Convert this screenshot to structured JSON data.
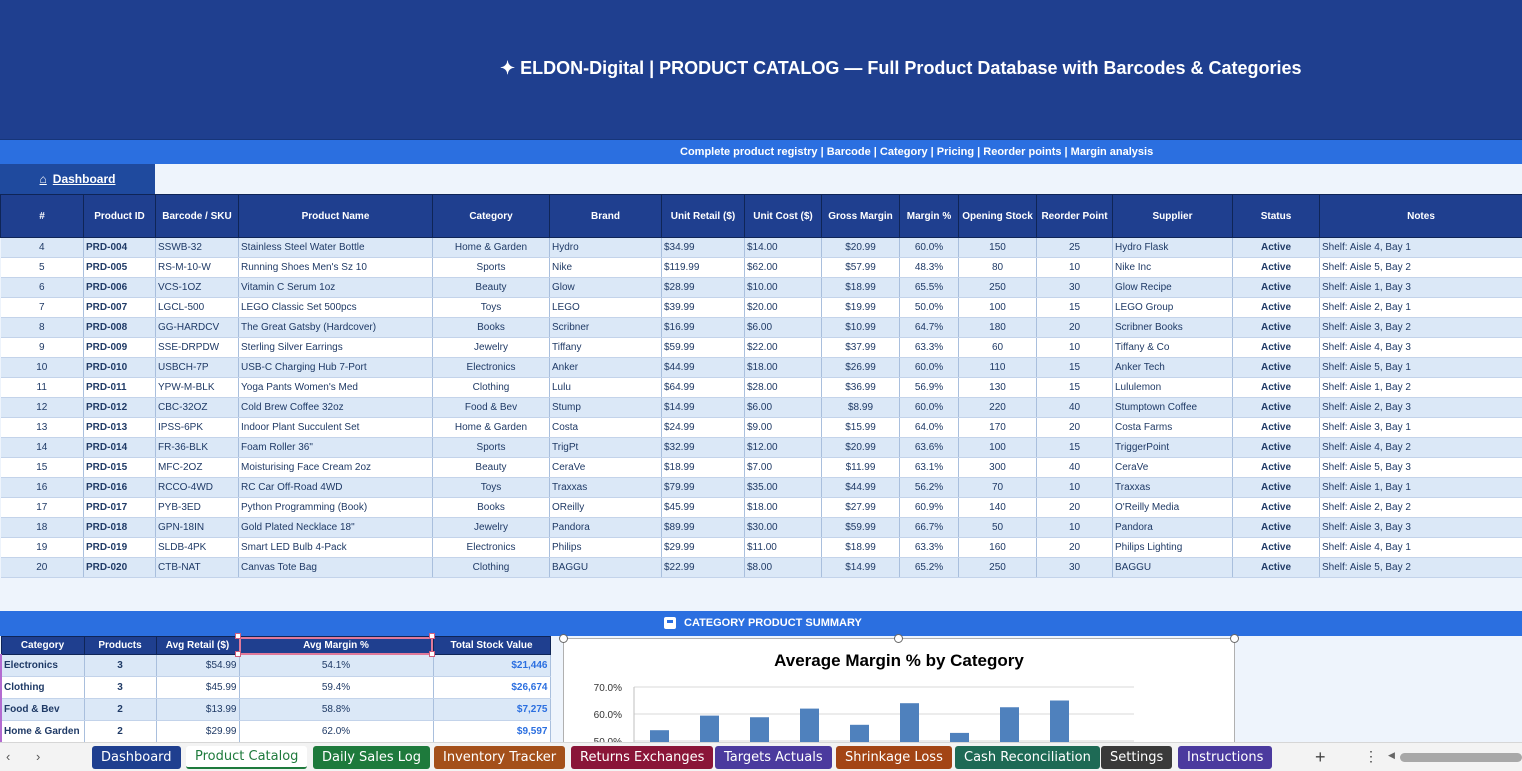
{
  "header": {
    "title": "✦  ELDON-Digital  |  PRODUCT CATALOG  —  Full Product Database with Barcodes & Categories",
    "subtitle": "Complete product registry  |  Barcode  |  Category  |  Pricing  |  Reorder points  |  Margin analysis",
    "bg_color": "#1f3f8f",
    "accent_color": "#2b6fe0"
  },
  "nav": {
    "dashboard_label": "Dashboard",
    "dashboard_icon": "home-icon"
  },
  "main_table": {
    "columns": [
      "#",
      "Product ID",
      "Barcode / SKU",
      "Product Name",
      "Category",
      "Brand",
      "Unit Retail ($)",
      "Unit Cost ($)",
      "Gross Margin",
      "Margin %",
      "Opening Stock",
      "Reorder Point",
      "Supplier",
      "Status",
      "Notes"
    ],
    "rows": [
      [
        "4",
        "PRD-004",
        "SSWB-32",
        "Stainless Steel Water Bottle",
        "Home & Garden",
        "Hydro",
        "$34.99",
        "$14.00",
        "$20.99",
        "60.0%",
        "150",
        "25",
        "Hydro Flask",
        "Active",
        "Shelf: Aisle 4, Bay 1"
      ],
      [
        "5",
        "PRD-005",
        "RS-M-10-W",
        "Running Shoes Men's Sz 10",
        "Sports",
        "Nike",
        "$119.99",
        "$62.00",
        "$57.99",
        "48.3%",
        "80",
        "10",
        "Nike Inc",
        "Active",
        "Shelf: Aisle 5, Bay 2"
      ],
      [
        "6",
        "PRD-006",
        "VCS-1OZ",
        "Vitamin C Serum 1oz",
        "Beauty",
        "Glow",
        "$28.99",
        "$10.00",
        "$18.99",
        "65.5%",
        "250",
        "30",
        "Glow Recipe",
        "Active",
        "Shelf: Aisle 1, Bay 3"
      ],
      [
        "7",
        "PRD-007",
        "LGCL-500",
        "LEGO Classic Set 500pcs",
        "Toys",
        "LEGO",
        "$39.99",
        "$20.00",
        "$19.99",
        "50.0%",
        "100",
        "15",
        "LEGO Group",
        "Active",
        "Shelf: Aisle 2, Bay 1"
      ],
      [
        "8",
        "PRD-008",
        "GG-HARDCV",
        "The Great Gatsby (Hardcover)",
        "Books",
        "Scribner",
        "$16.99",
        "$6.00",
        "$10.99",
        "64.7%",
        "180",
        "20",
        "Scribner Books",
        "Active",
        "Shelf: Aisle 3, Bay 2"
      ],
      [
        "9",
        "PRD-009",
        "SSE-DRPDW",
        "Sterling Silver Earrings",
        "Jewelry",
        "Tiffany",
        "$59.99",
        "$22.00",
        "$37.99",
        "63.3%",
        "60",
        "10",
        "Tiffany & Co",
        "Active",
        "Shelf: Aisle 4, Bay 3"
      ],
      [
        "10",
        "PRD-010",
        "USBCH-7P",
        "USB-C Charging Hub 7-Port",
        "Electronics",
        "Anker",
        "$44.99",
        "$18.00",
        "$26.99",
        "60.0%",
        "110",
        "15",
        "Anker Tech",
        "Active",
        "Shelf: Aisle 5, Bay 1"
      ],
      [
        "11",
        "PRD-011",
        "YPW-M-BLK",
        "Yoga Pants Women's Med",
        "Clothing",
        "Lulu",
        "$64.99",
        "$28.00",
        "$36.99",
        "56.9%",
        "130",
        "15",
        "Lululemon",
        "Active",
        "Shelf: Aisle 1, Bay 2"
      ],
      [
        "12",
        "PRD-012",
        "CBC-32OZ",
        "Cold Brew Coffee 32oz",
        "Food & Bev",
        "Stump",
        "$14.99",
        "$6.00",
        "$8.99",
        "60.0%",
        "220",
        "40",
        "Stumptown Coffee",
        "Active",
        "Shelf: Aisle 2, Bay 3"
      ],
      [
        "13",
        "PRD-013",
        "IPSS-6PK",
        "Indoor Plant Succulent Set",
        "Home & Garden",
        "Costa",
        "$24.99",
        "$9.00",
        "$15.99",
        "64.0%",
        "170",
        "20",
        "Costa Farms",
        "Active",
        "Shelf: Aisle 3, Bay 1"
      ],
      [
        "14",
        "PRD-014",
        "FR-36-BLK",
        "Foam Roller 36\"",
        "Sports",
        "TrigPt",
        "$32.99",
        "$12.00",
        "$20.99",
        "63.6%",
        "100",
        "15",
        "TriggerPoint",
        "Active",
        "Shelf: Aisle 4, Bay 2"
      ],
      [
        "15",
        "PRD-015",
        "MFC-2OZ",
        "Moisturising Face Cream 2oz",
        "Beauty",
        "CeraVe",
        "$18.99",
        "$7.00",
        "$11.99",
        "63.1%",
        "300",
        "40",
        "CeraVe",
        "Active",
        "Shelf: Aisle 5, Bay 3"
      ],
      [
        "16",
        "PRD-016",
        "RCCO-4WD",
        "RC Car Off-Road 4WD",
        "Toys",
        "Traxxas",
        "$79.99",
        "$35.00",
        "$44.99",
        "56.2%",
        "70",
        "10",
        "Traxxas",
        "Active",
        "Shelf: Aisle 1, Bay 1"
      ],
      [
        "17",
        "PRD-017",
        "PYB-3ED",
        "Python Programming (Book)",
        "Books",
        "OReilly",
        "$45.99",
        "$18.00",
        "$27.99",
        "60.9%",
        "140",
        "20",
        "O'Reilly Media",
        "Active",
        "Shelf: Aisle 2, Bay 2"
      ],
      [
        "18",
        "PRD-018",
        "GPN-18IN",
        "Gold Plated Necklace 18\"",
        "Jewelry",
        "Pandora",
        "$89.99",
        "$30.00",
        "$59.99",
        "66.7%",
        "50",
        "10",
        "Pandora",
        "Active",
        "Shelf: Aisle 3, Bay 3"
      ],
      [
        "19",
        "PRD-019",
        "SLDB-4PK",
        "Smart LED Bulb 4-Pack",
        "Electronics",
        "Philips",
        "$29.99",
        "$11.00",
        "$18.99",
        "63.3%",
        "160",
        "20",
        "Philips Lighting",
        "Active",
        "Shelf: Aisle 4, Bay 1"
      ],
      [
        "20",
        "PRD-020",
        "CTB-NAT",
        "Canvas Tote Bag",
        "Clothing",
        "BAGGU",
        "$22.99",
        "$8.00",
        "$14.99",
        "65.2%",
        "250",
        "30",
        "BAGGU",
        "Active",
        "Shelf: Aisle 5, Bay 2"
      ]
    ]
  },
  "summary": {
    "title": "CATEGORY PRODUCT SUMMARY",
    "title_icon": "chart-icon",
    "columns": [
      "Category",
      "Products",
      "Avg Retail ($)",
      "Avg Margin %",
      "Total Stock Value"
    ],
    "rows": [
      [
        "Electronics",
        "3",
        "$54.99",
        "54.1%",
        "$21,446"
      ],
      [
        "Clothing",
        "3",
        "$45.99",
        "59.4%",
        "$26,674"
      ],
      [
        "Food & Bev",
        "2",
        "$13.99",
        "58.8%",
        "$7,275"
      ],
      [
        "Home & Garden",
        "2",
        "$29.99",
        "62.0%",
        "$9,597"
      ]
    ]
  },
  "chart_data": {
    "type": "bar",
    "title": "Average Margin % by Category",
    "xlabel": "",
    "ylabel": "",
    "ylim": [
      0.5,
      0.7
    ],
    "yticks": [
      "70.0%",
      "60.0%",
      "50.0%"
    ],
    "values": [
      0.54,
      0.594,
      0.588,
      0.62,
      0.56,
      0.64,
      0.53,
      0.625,
      0.65
    ],
    "bar_color": "#4f81bd",
    "grid": true
  },
  "tabs": {
    "prev_icon": "‹",
    "next_icon": "›",
    "plus_label": "+",
    "more_label": "⋮",
    "items": [
      {
        "label": "Dashboard",
        "bg": "#1f3f8f",
        "fg": "#ffffff"
      },
      {
        "label": "Product Catalog",
        "bg": "#ffffff",
        "fg": "#1e7a3c",
        "active": true
      },
      {
        "label": "Daily Sales Log",
        "bg": "#1e7a3c",
        "fg": "#ffffff"
      },
      {
        "label": "Inventory Tracker",
        "bg": "#a4501a",
        "fg": "#ffffff"
      },
      {
        "label": "Returns Exchanges",
        "bg": "#8a1538",
        "fg": "#ffffff"
      },
      {
        "label": "Targets Actuals",
        "bg": "#4b3a9e",
        "fg": "#ffffff"
      },
      {
        "label": "Shrinkage Loss",
        "bg": "#a34515",
        "fg": "#ffffff"
      },
      {
        "label": "Cash Reconciliation",
        "bg": "#1e6a55",
        "fg": "#ffffff"
      },
      {
        "label": "Settings",
        "bg": "#3a3a3a",
        "fg": "#ffffff"
      },
      {
        "label": "Instructions",
        "bg": "#4b3a9e",
        "fg": "#ffffff"
      }
    ]
  }
}
